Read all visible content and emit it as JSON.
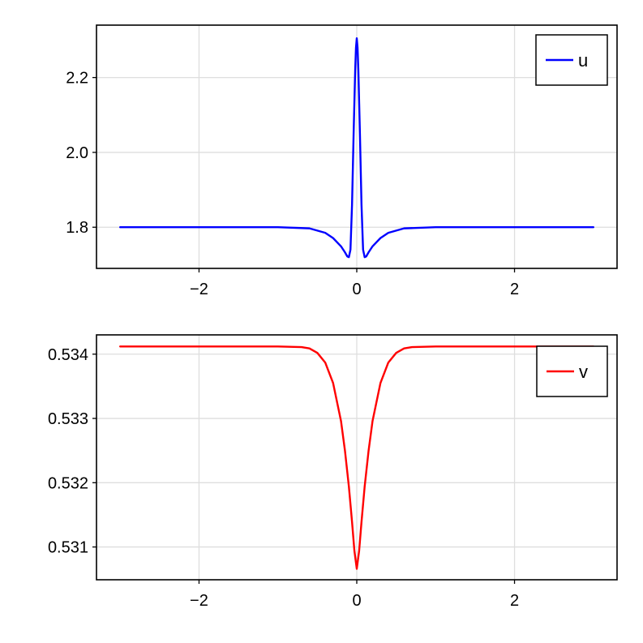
{
  "chart_data": [
    {
      "type": "line",
      "title": "",
      "xlabel": "",
      "ylabel": "",
      "xlim": [
        -3.3,
        3.3
      ],
      "ylim": [
        1.69,
        2.34
      ],
      "xticks": [
        -2,
        0,
        2
      ],
      "xtick_labels": [
        "−2",
        "0",
        "2"
      ],
      "yticks": [
        1.8,
        2.0,
        2.2
      ],
      "ytick_labels": [
        "1.8",
        "2.0",
        "2.2"
      ],
      "grid": true,
      "legend_position": "top-right",
      "series": [
        {
          "name": "u",
          "color": "#0000ff",
          "x": [
            -3.0,
            -2.0,
            -1.0,
            -0.6,
            -0.4,
            -0.3,
            -0.2,
            -0.15,
            -0.12,
            -0.1,
            -0.08,
            -0.06,
            -0.04,
            -0.02,
            -0.01,
            0.0,
            0.01,
            0.02,
            0.04,
            0.06,
            0.08,
            0.1,
            0.12,
            0.15,
            0.2,
            0.3,
            0.4,
            0.6,
            1.0,
            2.0,
            3.0
          ],
          "y": [
            1.8,
            1.8,
            1.8,
            1.797,
            1.785,
            1.771,
            1.749,
            1.733,
            1.722,
            1.72,
            1.74,
            1.86,
            2.05,
            2.22,
            2.28,
            2.305,
            2.28,
            2.22,
            2.05,
            1.86,
            1.74,
            1.72,
            1.722,
            1.733,
            1.749,
            1.771,
            1.785,
            1.797,
            1.8,
            1.8,
            1.8
          ]
        }
      ]
    },
    {
      "type": "line",
      "title": "",
      "xlabel": "",
      "ylabel": "",
      "xlim": [
        -3.3,
        3.3
      ],
      "ylim": [
        530.49,
        534.3
      ],
      "y_scale_note": "values x 0.001",
      "xticks": [
        -2,
        0,
        2
      ],
      "xtick_labels": [
        "−2",
        "0",
        "2"
      ],
      "yticks": [
        531,
        532,
        533,
        534
      ],
      "ytick_labels": [
        "0.531",
        "0.532",
        "0.533",
        "0.534"
      ],
      "grid": true,
      "legend_position": "top-right",
      "series": [
        {
          "name": "v",
          "color": "#ff0000",
          "x": [
            -3.0,
            -2.0,
            -1.0,
            -0.7,
            -0.6,
            -0.5,
            -0.4,
            -0.3,
            -0.2,
            -0.15,
            -0.1,
            -0.06,
            -0.03,
            0.0,
            0.03,
            0.06,
            0.1,
            0.15,
            0.2,
            0.3,
            0.4,
            0.5,
            0.6,
            0.7,
            1.0,
            2.0,
            3.0
          ],
          "y": [
            534.12,
            534.12,
            534.12,
            534.11,
            534.09,
            534.02,
            533.87,
            533.55,
            532.96,
            532.5,
            531.94,
            531.39,
            530.94,
            530.66,
            530.94,
            531.39,
            531.94,
            532.5,
            532.96,
            533.55,
            533.87,
            534.02,
            534.09,
            534.11,
            534.12,
            534.12,
            534.12
          ]
        }
      ]
    }
  ]
}
